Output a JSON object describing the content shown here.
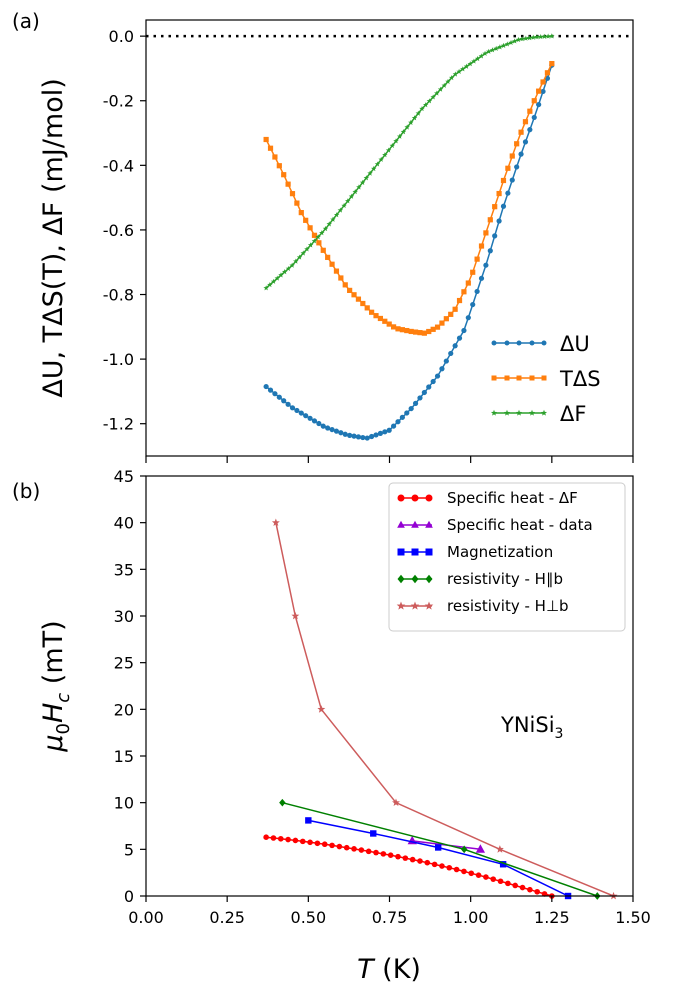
{
  "chart_data": [
    {
      "panel_label": "(a)",
      "type": "line",
      "ylabel": "ΔU, TΔS(T), ΔF (mJ/mol)",
      "xlim": [
        0,
        1.5
      ],
      "ylim": [
        -1.3,
        0.05
      ],
      "yticks": [
        "0.0",
        "-0.2",
        "-0.4",
        "-0.6",
        "-0.8",
        "-1.0",
        "-1.2"
      ],
      "yticks_values": [
        0.0,
        -0.2,
        -0.4,
        -0.6,
        -0.8,
        -1.0,
        -1.2
      ],
      "reference_line": 0.0,
      "legend_position": "lower-right",
      "series": [
        {
          "name": "ΔU",
          "marker": "circle",
          "color": "#1f77b4",
          "x": [
            0.37,
            0.45,
            0.55,
            0.62,
            0.68,
            0.75,
            0.82,
            0.9,
            0.98,
            1.05,
            1.1,
            1.15,
            1.2,
            1.25
          ],
          "y": [
            -1.085,
            -1.15,
            -1.21,
            -1.235,
            -1.245,
            -1.22,
            -1.15,
            -1.05,
            -0.91,
            -0.7,
            -0.53,
            -0.38,
            -0.24,
            -0.09
          ]
        },
        {
          "name": "TΔS",
          "marker": "square",
          "color": "#ff7f0e",
          "x": [
            0.37,
            0.42,
            0.48,
            0.55,
            0.62,
            0.7,
            0.77,
            0.82,
            0.86,
            0.9,
            0.95,
            1.0,
            1.05,
            1.1,
            1.15,
            1.2,
            1.25
          ],
          "y": [
            -0.32,
            -0.42,
            -0.55,
            -0.67,
            -0.78,
            -0.86,
            -0.905,
            -0.915,
            -0.92,
            -0.9,
            -0.85,
            -0.75,
            -0.6,
            -0.45,
            -0.31,
            -0.19,
            -0.085
          ]
        },
        {
          "name": "ΔF",
          "marker": "star",
          "color": "#2ca02c",
          "x": [
            0.37,
            0.45,
            0.55,
            0.65,
            0.75,
            0.85,
            0.95,
            1.05,
            1.15,
            1.2,
            1.25
          ],
          "y": [
            -0.78,
            -0.71,
            -0.6,
            -0.475,
            -0.35,
            -0.225,
            -0.12,
            -0.05,
            -0.01,
            -0.003,
            0.0
          ]
        }
      ]
    },
    {
      "panel_label": "(b)",
      "type": "line",
      "xlabel": "T (K)",
      "ylabel": "μ0Hc (mT)",
      "xlim": [
        0,
        1.5
      ],
      "ylim": [
        0,
        45
      ],
      "xticks": [
        "0.00",
        "0.25",
        "0.50",
        "0.75",
        "1.00",
        "1.25",
        "1.50"
      ],
      "xticks_values": [
        0,
        0.25,
        0.5,
        0.75,
        1.0,
        1.25,
        1.5
      ],
      "yticks": [
        "0",
        "5",
        "10",
        "15",
        "20",
        "25",
        "30",
        "35",
        "40",
        "45"
      ],
      "yticks_values": [
        0,
        5,
        10,
        15,
        20,
        25,
        30,
        35,
        40,
        45
      ],
      "annotation": "YNiSi3",
      "legend_position": "top-right",
      "series": [
        {
          "name": "Specific heat - ΔF",
          "marker": "circle",
          "color": "#ff0000",
          "x": [
            0.37,
            0.45,
            0.55,
            0.65,
            0.75,
            0.85,
            0.95,
            1.05,
            1.15,
            1.22,
            1.25
          ],
          "y": [
            6.3,
            6.0,
            5.55,
            5.0,
            4.4,
            3.7,
            2.9,
            2.0,
            1.0,
            0.3,
            0.0
          ]
        },
        {
          "name": "Specific heat - data",
          "marker": "triangle",
          "color": "#9400d3",
          "x": [
            0.82,
            1.03
          ],
          "y": [
            5.9,
            5.0
          ]
        },
        {
          "name": "Magnetization",
          "marker": "square",
          "color": "#0000ff",
          "x": [
            0.5,
            0.7,
            0.9,
            1.1,
            1.3
          ],
          "y": [
            8.1,
            6.7,
            5.2,
            3.4,
            0.0
          ]
        },
        {
          "name": "resistivity - H∥b",
          "marker": "diamond",
          "color": "#008000",
          "x": [
            0.42,
            0.98,
            1.39
          ],
          "y": [
            10.0,
            5.0,
            0.0
          ]
        },
        {
          "name": "resistivity - H⊥b",
          "marker": "star",
          "color": "#cd5c5c",
          "x": [
            0.4,
            0.46,
            0.54,
            0.77,
            1.09,
            1.44
          ],
          "y": [
            40.0,
            30.0,
            20.0,
            10.0,
            5.0,
            0.0
          ]
        }
      ]
    }
  ]
}
